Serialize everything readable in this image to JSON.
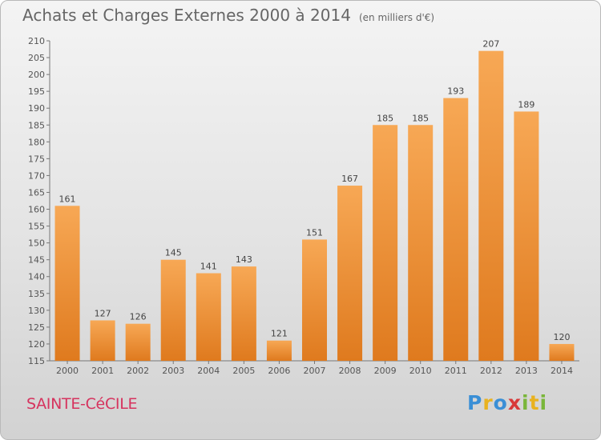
{
  "header": {
    "title": "Achats et Charges Externes 2000 à 2014",
    "subtitle": "(en milliers d'€)"
  },
  "footer": {
    "commune": "SAINTE-CéCILE",
    "logo_letters": [
      {
        "ch": "P",
        "color": "#3a8fd6"
      },
      {
        "ch": "r",
        "color": "#e9b21f"
      },
      {
        "ch": "o",
        "color": "#3a8fd6"
      },
      {
        "ch": "x",
        "color": "#d83a3a"
      },
      {
        "ch": "i",
        "color": "#7ab63a"
      },
      {
        "ch": "t",
        "color": "#e9b21f"
      },
      {
        "ch": "i",
        "color": "#7ab63a"
      }
    ]
  },
  "chart_data": {
    "type": "bar",
    "categories": [
      "2000",
      "2001",
      "2002",
      "2003",
      "2004",
      "2005",
      "2006",
      "2007",
      "2008",
      "2009",
      "2010",
      "2011",
      "2012",
      "2013",
      "2014"
    ],
    "values": [
      161,
      127,
      126,
      145,
      141,
      143,
      121,
      151,
      167,
      185,
      185,
      193,
      207,
      189,
      120
    ],
    "ylim": [
      115,
      210
    ],
    "ytick_step": 5,
    "grid": false,
    "bar_color": "#f0923a"
  }
}
